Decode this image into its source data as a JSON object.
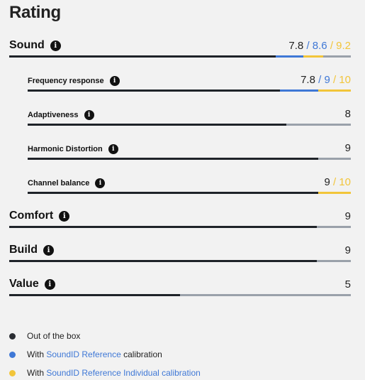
{
  "title": "Rating",
  "colors": {
    "base": "#1f2329",
    "ref": "#3f78d6",
    "individual": "#f2c53a",
    "track": "#9aa1aa"
  },
  "rows": [
    {
      "key": "sound",
      "label": "Sound",
      "level": "main",
      "info_icon": "info-icon",
      "base": "7.8",
      "ref": "/ 8.6",
      "individual": "/ 9.2",
      "bar": {
        "base": 7.8,
        "ref": 8.6,
        "individual": 9.2,
        "max": 10
      }
    },
    {
      "key": "frequency-response",
      "label": "Frequency response",
      "level": "sub",
      "info_icon": "info-icon",
      "base": "7.8",
      "ref": "/ 9",
      "individual": "/ 10",
      "bar": {
        "base": 7.8,
        "ref": 9,
        "individual": 10,
        "max": 10
      }
    },
    {
      "key": "adaptiveness",
      "label": "Adaptiveness",
      "level": "sub",
      "info_icon": "info-icon",
      "base": "8",
      "ref": "",
      "individual": "",
      "bar": {
        "base": 8,
        "max": 10
      }
    },
    {
      "key": "harmonic-distortion",
      "label": "Harmonic Distortion",
      "level": "sub",
      "info_icon": "info-icon",
      "base": "9",
      "ref": "",
      "individual": "",
      "bar": {
        "base": 9,
        "max": 10
      }
    },
    {
      "key": "channel-balance",
      "label": "Channel balance",
      "level": "sub",
      "info_icon": "info-icon",
      "base": "9",
      "ref": "",
      "individual": "/ 10",
      "bar": {
        "base": 9,
        "individual": 10,
        "max": 10
      }
    },
    {
      "key": "comfort",
      "label": "Comfort",
      "level": "main",
      "info_icon": "info-icon",
      "base": "9",
      "ref": "",
      "individual": "",
      "bar": {
        "base": 9,
        "max": 10
      }
    },
    {
      "key": "build",
      "label": "Build",
      "level": "main",
      "info_icon": "info-icon",
      "base": "9",
      "ref": "",
      "individual": "",
      "bar": {
        "base": 9,
        "max": 10
      }
    },
    {
      "key": "value",
      "label": "Value",
      "level": "main",
      "info_icon": "info-icon",
      "base": "5",
      "ref": "",
      "individual": "",
      "bar": {
        "base": 5,
        "max": 10
      }
    }
  ],
  "legend": {
    "out_of_box": "Out of the box",
    "ref_prefix": "With",
    "ref_link": "SoundID Reference",
    "ref_suffix": "calibration",
    "ind_prefix": "With",
    "ind_link": "SoundID Reference Individual calibration"
  }
}
